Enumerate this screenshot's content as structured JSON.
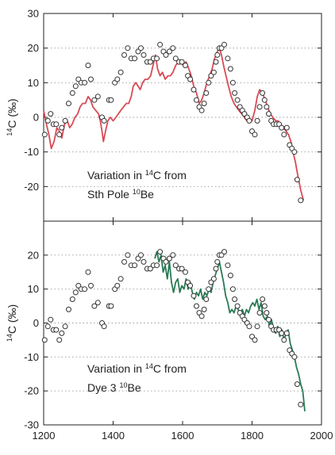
{
  "colors": {
    "top_model": "#d94a55",
    "bottom_model": "#2a7a55",
    "observed": "#333333"
  },
  "chart_data": [
    {
      "type": "line",
      "xlim": [
        1200,
        2000
      ],
      "ylim": [
        -30,
        30
      ],
      "yticks": [
        -20,
        -10,
        0,
        10,
        20,
        30
      ],
      "grid": "horizontal dotted at y ticks",
      "ylabel": {
        "sup": "14",
        "main": "C (‰)"
      },
      "annotation": {
        "line1_pre": "Variation in ",
        "line1_sup": "14",
        "line1_post": "C from",
        "line2_pre": "Sth Pole ",
        "line2_sup": "10",
        "line2_post": "Be"
      },
      "series": [
        {
          "kind": "model_line",
          "color": "#d94a55",
          "x": [
            1200,
            1208,
            1215,
            1222,
            1230,
            1238,
            1245,
            1252,
            1260,
            1268,
            1275,
            1282,
            1290,
            1298,
            1305,
            1312,
            1320,
            1328,
            1335,
            1342,
            1350,
            1358,
            1363,
            1368,
            1372,
            1378,
            1385,
            1392,
            1400,
            1408,
            1415,
            1422,
            1430,
            1438,
            1445,
            1452,
            1458,
            1465,
            1472,
            1478,
            1485,
            1492,
            1500,
            1508,
            1515,
            1522,
            1528,
            1535,
            1542,
            1550,
            1558,
            1565,
            1572,
            1580,
            1588,
            1595,
            1602,
            1610,
            1618,
            1625,
            1632,
            1640,
            1648,
            1655,
            1662,
            1670,
            1678,
            1685,
            1692,
            1700,
            1706,
            1712,
            1718,
            1725,
            1732,
            1740,
            1748,
            1755,
            1762,
            1770,
            1778,
            1785,
            1792,
            1800,
            1808,
            1815,
            1822,
            1830,
            1838,
            1845,
            1852,
            1860,
            1868,
            1875,
            1882,
            1890,
            1898,
            1905,
            1912,
            1918,
            1925,
            1932,
            1940,
            1948
          ],
          "y": [
            2,
            -2,
            -5,
            -9,
            -7,
            -3,
            -4,
            -6,
            -2,
            -1,
            -3,
            -2,
            0,
            1,
            3,
            4,
            4,
            6,
            5,
            3,
            2,
            1,
            -1,
            -4,
            -7,
            -4,
            -1,
            0,
            -1,
            0,
            1,
            2,
            3,
            4,
            4,
            6,
            9,
            10,
            9,
            8,
            10,
            11,
            11,
            12,
            15,
            18,
            14,
            12,
            13,
            11,
            12,
            12,
            13,
            15,
            16,
            16,
            15,
            16,
            14,
            12,
            9,
            7,
            4,
            5,
            7,
            10,
            12,
            14,
            17,
            19,
            20,
            18,
            15,
            12,
            9,
            6,
            4,
            3,
            2,
            1,
            0,
            -1,
            -1,
            -1,
            2,
            6,
            8,
            7,
            5,
            3,
            1,
            0,
            -1,
            -1,
            -2,
            -3,
            -4,
            -5,
            -7,
            -10,
            -13,
            -17,
            -21,
            -24
          ]
        },
        {
          "kind": "observed_points",
          "x": [
            1203,
            1212,
            1220,
            1228,
            1236,
            1245,
            1252,
            1262,
            1272,
            1283,
            1292,
            1300,
            1308,
            1318,
            1328,
            1336,
            1346,
            1356,
            1368,
            1374,
            1388,
            1394,
            1405,
            1412,
            1422,
            1432,
            1442,
            1452,
            1462,
            1472,
            1480,
            1488,
            1498,
            1507,
            1516,
            1526,
            1535,
            1545,
            1552,
            1562,
            1572,
            1580,
            1590,
            1598,
            1608,
            1615,
            1622,
            1632,
            1640,
            1648,
            1655,
            1662,
            1668,
            1675,
            1682,
            1690,
            1696,
            1700,
            1706,
            1712,
            1720,
            1730,
            1738,
            1745,
            1750,
            1758,
            1765,
            1772,
            1778,
            1786,
            1792,
            1800,
            1808,
            1815,
            1822,
            1830,
            1836,
            1842,
            1848,
            1855,
            1862,
            1870,
            1878,
            1885,
            1892,
            1900,
            1908,
            1915,
            1922,
            1930,
            1940
          ],
          "y": [
            -5,
            -1,
            1,
            -2,
            -2,
            -5,
            -3,
            -1,
            4,
            7,
            9,
            11,
            10,
            10,
            15,
            11,
            5,
            6,
            0,
            -1,
            5,
            5,
            10,
            11,
            13,
            18,
            20,
            17,
            17,
            19,
            20,
            18,
            16,
            16,
            17,
            17,
            21,
            19,
            18,
            19,
            20,
            17,
            16,
            16,
            15,
            12,
            11,
            8,
            5,
            3,
            2,
            4,
            7,
            10,
            12,
            13,
            16,
            18,
            20,
            20,
            21,
            17,
            14,
            10,
            7,
            5,
            3,
            2,
            1,
            0,
            -1,
            -4,
            -5,
            -1,
            3,
            7,
            5,
            3,
            1,
            -1,
            -2,
            -2,
            -2,
            -3,
            -5,
            -3,
            -8,
            -9,
            -10,
            -18,
            -24
          ]
        }
      ]
    },
    {
      "type": "line",
      "xlim": [
        1200,
        2000
      ],
      "ylim": [
        -30,
        30
      ],
      "xticks": [
        1200,
        1400,
        1600,
        1800,
        2000
      ],
      "yticks": [
        -30,
        -20,
        -10,
        0,
        10,
        20
      ],
      "grid": "horizontal dotted at y ticks",
      "ylabel": {
        "sup": "14",
        "main": "C (‰)"
      },
      "annotation": {
        "line1_pre": "Variation in ",
        "line1_sup": "14",
        "line1_post": "C from",
        "line2_pre": "Dye 3 ",
        "line2_sup": "10",
        "line2_post": "Be"
      },
      "series": [
        {
          "kind": "model_line",
          "color": "#2a7a55",
          "x": [
            1520,
            1526,
            1532,
            1538,
            1544,
            1550,
            1556,
            1562,
            1568,
            1574,
            1580,
            1586,
            1592,
            1598,
            1604,
            1610,
            1616,
            1622,
            1628,
            1634,
            1640,
            1646,
            1652,
            1658,
            1664,
            1670,
            1676,
            1682,
            1688,
            1694,
            1700,
            1706,
            1712,
            1718,
            1724,
            1730,
            1736,
            1742,
            1748,
            1754,
            1760,
            1766,
            1772,
            1778,
            1784,
            1790,
            1796,
            1802,
            1808,
            1814,
            1820,
            1826,
            1832,
            1838,
            1844,
            1850,
            1856,
            1862,
            1868,
            1874,
            1880,
            1886,
            1892,
            1898,
            1904,
            1910,
            1916,
            1922,
            1928,
            1934,
            1940,
            1946,
            1952
          ],
          "y": [
            19,
            21,
            18,
            20,
            15,
            17,
            13,
            18,
            12,
            9,
            12,
            13,
            9,
            11,
            10,
            13,
            10,
            12,
            9,
            7,
            9,
            8,
            10,
            7,
            9,
            8,
            10,
            9,
            12,
            14,
            16,
            18,
            15,
            12,
            8,
            6,
            3,
            4,
            3,
            5,
            4,
            3,
            4,
            2,
            4,
            3,
            5,
            6,
            5,
            7,
            4,
            6,
            2,
            1,
            2,
            -1,
            1,
            -2,
            -3,
            -1,
            -4,
            -2,
            -5,
            -3,
            -2,
            -6,
            -8,
            -10,
            -13,
            -15,
            -18,
            -20,
            -26
          ]
        },
        {
          "kind": "observed_points",
          "x": [
            1203,
            1212,
            1220,
            1228,
            1236,
            1245,
            1252,
            1262,
            1272,
            1283,
            1292,
            1300,
            1308,
            1318,
            1328,
            1336,
            1346,
            1356,
            1368,
            1374,
            1388,
            1394,
            1405,
            1412,
            1422,
            1432,
            1442,
            1452,
            1462,
            1472,
            1480,
            1488,
            1498,
            1507,
            1516,
            1526,
            1535,
            1545,
            1552,
            1562,
            1572,
            1580,
            1590,
            1598,
            1608,
            1615,
            1622,
            1632,
            1640,
            1648,
            1655,
            1662,
            1668,
            1675,
            1682,
            1690,
            1696,
            1700,
            1706,
            1712,
            1720,
            1730,
            1738,
            1745,
            1750,
            1758,
            1765,
            1772,
            1778,
            1786,
            1792,
            1800,
            1808,
            1815,
            1822,
            1830,
            1836,
            1842,
            1848,
            1855,
            1862,
            1870,
            1878,
            1885,
            1892,
            1900,
            1908,
            1915,
            1922,
            1930,
            1940
          ],
          "y": [
            -5,
            -1,
            1,
            -2,
            -2,
            -5,
            -3,
            -1,
            4,
            7,
            9,
            11,
            10,
            10,
            15,
            11,
            5,
            6,
            0,
            -1,
            5,
            5,
            10,
            11,
            13,
            18,
            20,
            17,
            17,
            19,
            20,
            18,
            16,
            16,
            17,
            17,
            21,
            19,
            18,
            19,
            20,
            17,
            16,
            16,
            15,
            12,
            11,
            8,
            5,
            3,
            2,
            4,
            7,
            10,
            12,
            13,
            16,
            18,
            20,
            20,
            21,
            17,
            14,
            10,
            7,
            5,
            3,
            2,
            1,
            0,
            -1,
            -4,
            -5,
            -1,
            3,
            7,
            5,
            3,
            1,
            -1,
            -2,
            -2,
            -2,
            -3,
            -5,
            -3,
            -8,
            -9,
            -10,
            -18,
            -24
          ]
        }
      ]
    }
  ]
}
